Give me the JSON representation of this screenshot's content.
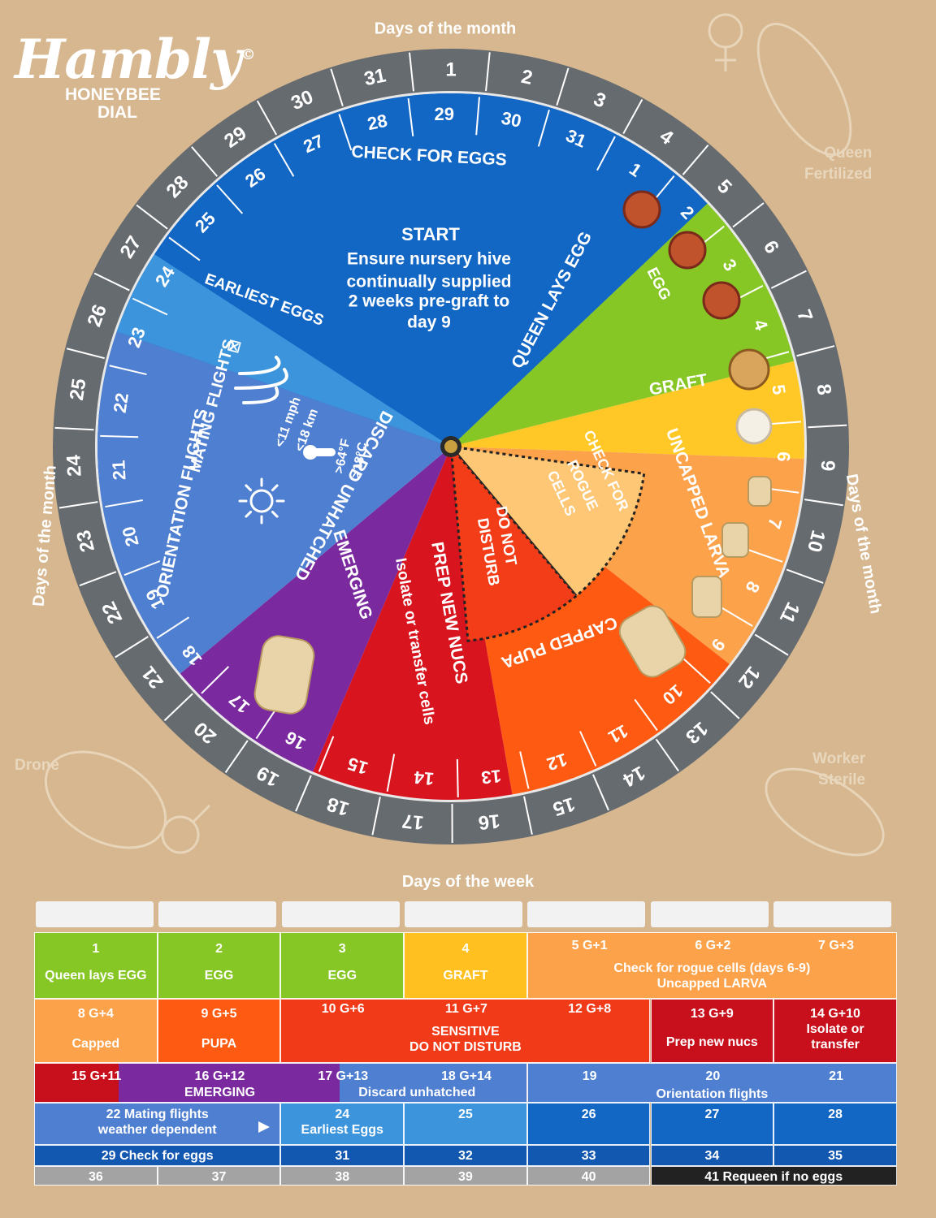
{
  "brand": {
    "logo": "Hambly",
    "copyright": "©",
    "line1": "HONEYBEE",
    "line2": "DIAL"
  },
  "corners": {
    "queen": [
      "Queen",
      "Fertilized"
    ],
    "drone": "Drone",
    "worker": [
      "Worker",
      "Sterile"
    ]
  },
  "dial": {
    "days_label": "Days of the month",
    "outer_ring": [
      "1",
      "2",
      "3",
      "4",
      "5",
      "6",
      "7",
      "8",
      "9",
      "10",
      "11",
      "12",
      "13",
      "14",
      "15",
      "16",
      "17",
      "18",
      "19",
      "20",
      "21",
      "22",
      "23",
      "24",
      "25",
      "26",
      "27",
      "28",
      "29",
      "30",
      "31"
    ],
    "inner_ring": [
      "1",
      "2",
      "3",
      "4",
      "5",
      "6",
      "7",
      "8",
      "9",
      "10",
      "11",
      "12",
      "13",
      "14",
      "15",
      "16",
      "17",
      "18",
      "19",
      "20",
      "21",
      "22",
      "23",
      "24",
      "25",
      "26",
      "27",
      "28",
      "29",
      "30",
      "31"
    ],
    "sectors": {
      "check_eggs": "CHECK FOR EGGS",
      "start": [
        "START",
        "Ensure nursery hive",
        "continually supplied",
        "2 weeks pre-graft to",
        "day 9"
      ],
      "queen_lays": "QUEEN LAYS EGG",
      "egg": "EGG",
      "graft": "GRAFT",
      "uncapped": "UNCAPPED LARVA",
      "capped": "CAPPED PUPA",
      "rogue": [
        "CHECK FOR",
        "ROGUE",
        "CELLS"
      ],
      "do_not_disturb": [
        "DO NOT",
        "DISTURB"
      ],
      "prep": [
        "PREP NEW NUCS",
        "Isolate or transfer cells"
      ],
      "emerging": "EMERGING",
      "discard": "DISCARD UNHATCHED",
      "orientation": "ORIENTATION FLIGHTS",
      "mating": "MATING FLIGHTS",
      "mating_check": "☒",
      "wind": [
        "<11 mph",
        "<18 km"
      ],
      "temp": [
        ">64°F",
        ">18°C"
      ],
      "earliest": "EARLIEST EGGS"
    },
    "colors": {
      "ring": "#666b70",
      "blue": "#1266c4",
      "lightblue": "#3c95dc",
      "periwinkle": "#4f7fd0",
      "purple": "#7a2a9e",
      "red": "#d8151f",
      "orange": "#ff5a12",
      "lightorange": "#fca24b",
      "yellow": "#ffc826",
      "green": "#86c625",
      "peach": "#fdc775"
    }
  },
  "week": {
    "title": "Days of the week",
    "rows": [
      [
        {
          "lines": [
            "1",
            "Queen lays EGG"
          ],
          "color": "#86c625"
        },
        {
          "lines": [
            "2",
            "EGG"
          ],
          "color": "#86c625"
        },
        {
          "lines": [
            "3",
            "EGG"
          ],
          "color": "#86c625"
        },
        {
          "lines": [
            "4",
            "GRAFT"
          ],
          "color": "#ffc020"
        },
        {
          "lines": [
            "5 G+1",
            "6 G+2",
            "7 G+3",
            "Check for rogue cells (days 6-9)",
            "Uncapped LARVA"
          ],
          "color": "#fca24b"
        }
      ],
      [
        {
          "lines": [
            "8 G+4",
            "Capped"
          ],
          "color": "#fca24b"
        },
        {
          "lines": [
            "9 G+5",
            "PUPA"
          ],
          "color": "#ff5a12"
        },
        {
          "lines": [
            "10 G+6",
            "11 G+7",
            "12 G+8",
            "SENSITIVE",
            "DO NOT DISTURB"
          ],
          "color": "#f03a18"
        },
        {
          "lines": [
            "13 G+9",
            "Prep new nucs"
          ],
          "color": "#c8101c"
        },
        {
          "lines": [
            "14 G+10",
            "Isolate or",
            "transfer"
          ],
          "color": "#c8101c"
        }
      ],
      [
        {
          "lines": [
            "15 G+11",
            "16 G+12",
            "EMERGING",
            "17 G+13",
            "18 G+14",
            "Discard unhatched"
          ],
          "color": "#7a2a9e"
        },
        {
          "lines": [
            "19",
            "20",
            "21",
            "Orientation  flights"
          ],
          "color": "#4f7fd0"
        }
      ],
      [
        {
          "lines": [
            "22 Mating flights",
            "weather dependent"
          ],
          "color": "#4f7fd0"
        },
        {
          "lines": [
            "24",
            "Earliest Eggs"
          ],
          "color": "#3c95dc"
        },
        {
          "lines": [
            "25"
          ],
          "color": "#3c95dc"
        },
        {
          "lines": [
            "26"
          ],
          "color": "#1266c4"
        },
        {
          "lines": [
            "27"
          ],
          "color": "#1266c4"
        },
        {
          "lines": [
            "28"
          ],
          "color": "#1266c4"
        }
      ],
      [
        {
          "lines": [
            "29 Check for eggs"
          ],
          "color": "#1258b0"
        },
        {
          "lines": [
            "31"
          ],
          "color": "#1258b0"
        },
        {
          "lines": [
            "32"
          ],
          "color": "#1258b0"
        },
        {
          "lines": [
            "33"
          ],
          "color": "#1258b0"
        },
        {
          "lines": [
            "34"
          ],
          "color": "#1258b0"
        },
        {
          "lines": [
            "35"
          ],
          "color": "#1258b0"
        }
      ],
      [
        {
          "lines": [
            "36"
          ],
          "color": "#a3a3a3"
        },
        {
          "lines": [
            "37"
          ],
          "color": "#a3a3a3"
        },
        {
          "lines": [
            "38"
          ],
          "color": "#a3a3a3"
        },
        {
          "lines": [
            "39"
          ],
          "color": "#a3a3a3"
        },
        {
          "lines": [
            "40"
          ],
          "color": "#a3a3a3"
        },
        {
          "lines": [
            "41 Requeen if no eggs"
          ],
          "color": "#222222"
        }
      ]
    ]
  }
}
